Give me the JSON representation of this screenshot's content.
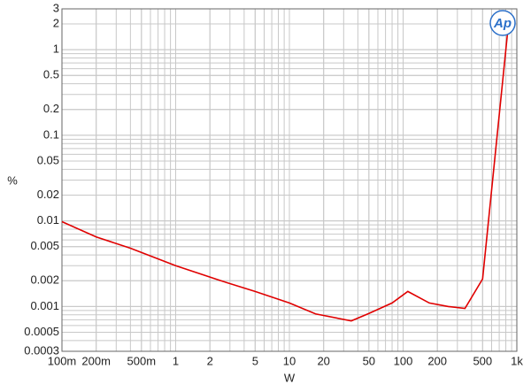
{
  "chart_data": {
    "type": "line",
    "logo": "Ap",
    "xlabel": "W",
    "ylabel": "%",
    "xscale": "log",
    "yscale": "log",
    "grid": true,
    "x": [
      0.1,
      0.2,
      0.4,
      1,
      2.5,
      5,
      10,
      17,
      35,
      50,
      80,
      110,
      170,
      250,
      350,
      500,
      850
    ],
    "series": [
      {
        "color": "#e00000",
        "values": [
          0.0098,
          0.0065,
          0.0048,
          0.003,
          0.002,
          0.0015,
          0.0011,
          0.00082,
          0.00068,
          0.00083,
          0.0011,
          0.0015,
          0.0011,
          0.001,
          0.00095,
          0.0021,
          2.2
        ]
      }
    ],
    "xlim": [
      0.1,
      1000
    ],
    "ylim": [
      0.0003,
      3
    ],
    "xticks": [
      {
        "value": 0.1,
        "label": "100m"
      },
      {
        "value": 0.2,
        "label": "200m"
      },
      {
        "value": 0.5,
        "label": "500m"
      },
      1,
      2,
      5,
      10,
      20,
      50,
      100,
      200,
      500,
      {
        "value": 1000,
        "label": "1k"
      }
    ],
    "yticks": [
      3,
      2,
      1,
      0.5,
      0.2,
      0.1,
      0.05,
      0.02,
      0.01,
      0.005,
      0.002,
      0.001,
      0.0005,
      0.0003
    ]
  }
}
